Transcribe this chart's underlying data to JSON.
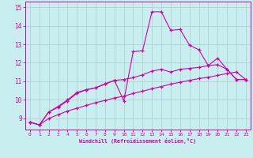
{
  "xlabel": "Windchill (Refroidissement éolien,°C)",
  "bg_color": "#c8eef0",
  "line_color": "#cc00aa",
  "grid_color": "#aacccc",
  "xlim": [
    -0.5,
    23.5
  ],
  "ylim": [
    8.4,
    15.3
  ],
  "xticks": [
    0,
    1,
    2,
    3,
    4,
    5,
    6,
    7,
    8,
    9,
    10,
    11,
    12,
    13,
    14,
    15,
    16,
    17,
    18,
    19,
    20,
    21,
    22,
    23
  ],
  "yticks": [
    9,
    10,
    11,
    12,
    13,
    14,
    15
  ],
  "line1_x": [
    0,
    1,
    2,
    3,
    4,
    5,
    6,
    7,
    8,
    9,
    10,
    11,
    12,
    13,
    14,
    15,
    16,
    17,
    18,
    19,
    20,
    21,
    22,
    23
  ],
  "line1_y": [
    8.8,
    8.65,
    9.0,
    9.2,
    9.4,
    9.55,
    9.7,
    9.85,
    9.97,
    10.1,
    10.2,
    10.35,
    10.47,
    10.6,
    10.72,
    10.85,
    10.95,
    11.05,
    11.15,
    11.22,
    11.32,
    11.42,
    11.5,
    11.1
  ],
  "line2_x": [
    0,
    1,
    2,
    3,
    4,
    5,
    6,
    7,
    8,
    9,
    10,
    11,
    12,
    13,
    14,
    15,
    16,
    17,
    18,
    19,
    20,
    21,
    22,
    23
  ],
  "line2_y": [
    8.8,
    8.65,
    9.35,
    9.65,
    10.0,
    10.4,
    10.55,
    10.65,
    10.85,
    11.05,
    9.95,
    12.6,
    12.65,
    14.75,
    14.75,
    13.75,
    13.8,
    12.95,
    12.7,
    11.85,
    12.25,
    11.65,
    11.1,
    11.1
  ],
  "line3_x": [
    0,
    1,
    2,
    3,
    4,
    5,
    6,
    7,
    8,
    9,
    10,
    11,
    12,
    13,
    14,
    15,
    16,
    17,
    18,
    19,
    20,
    21,
    22,
    23
  ],
  "line3_y": [
    8.8,
    8.65,
    9.35,
    9.6,
    9.95,
    10.35,
    10.55,
    10.65,
    10.87,
    11.05,
    11.1,
    11.2,
    11.35,
    11.55,
    11.65,
    11.5,
    11.65,
    11.7,
    11.75,
    11.85,
    11.9,
    11.65,
    11.1,
    11.1
  ]
}
